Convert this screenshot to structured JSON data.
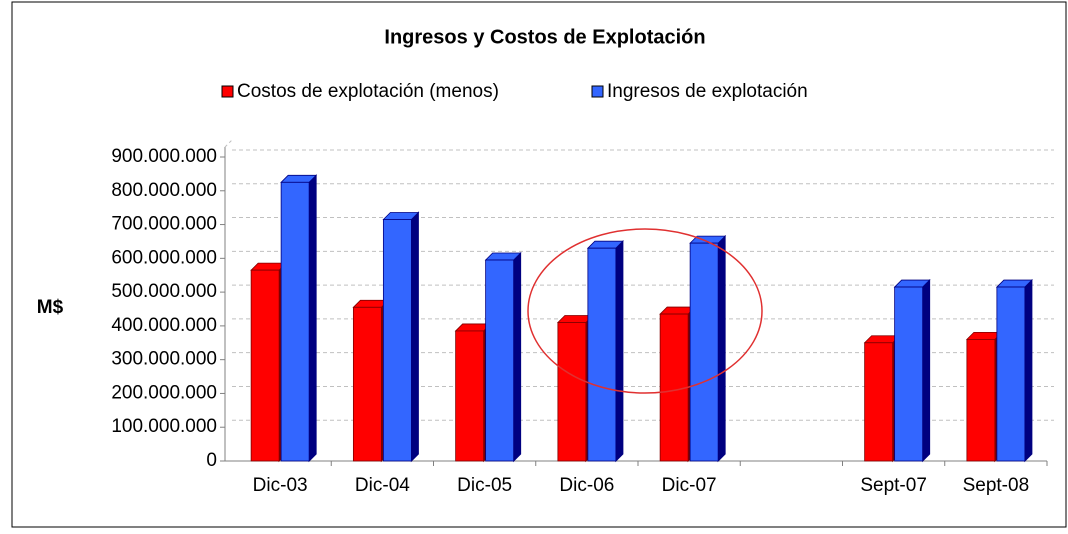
{
  "chart_data": {
    "type": "bar3d",
    "title": "Ingresos y Costos de Explotación",
    "ylabel": "M$",
    "categories": [
      "Dic-03",
      "Dic-04",
      "Dic-05",
      "Dic-06",
      "Dic-07",
      null,
      "Sept-07",
      "Sept-08"
    ],
    "series": [
      {
        "name": "Costos de explotación (menos)",
        "color": "#ff0000",
        "edge": "#800000",
        "values": [
          565000000,
          455000000,
          385000000,
          410000000,
          435000000,
          null,
          350000000,
          360000000
        ]
      },
      {
        "name": "Ingresos de explotación",
        "color": "#3366ff",
        "edge": "#000080",
        "values": [
          825000000,
          715000000,
          595000000,
          630000000,
          645000000,
          null,
          515000000,
          515000000
        ]
      }
    ],
    "ylim": [
      0,
      900000000
    ],
    "yticks": [
      0,
      {
        "value": 100000000,
        "label": "100.000.000"
      },
      {
        "value": 200000000,
        "label": "200.000.000"
      },
      {
        "value": 300000000,
        "label": "300.000.000"
      },
      {
        "value": 400000000,
        "label": "400.000.000"
      },
      {
        "value": 500000000,
        "label": "500.000.000"
      },
      {
        "value": 600000000,
        "label": "600.000.000"
      },
      {
        "value": 700000000,
        "label": "700.000.000"
      },
      {
        "value": 800000000,
        "label": "800.000.000"
      },
      {
        "value": 900000000,
        "label": "900.000.000"
      }
    ],
    "grid": true
  }
}
